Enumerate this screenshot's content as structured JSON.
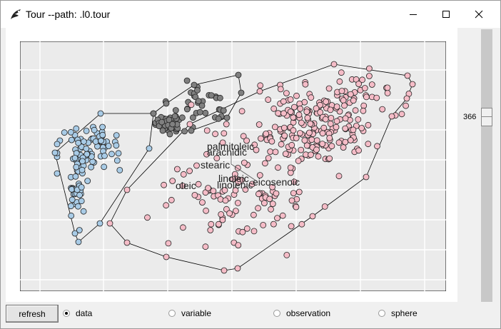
{
  "window": {
    "title": "Tour --path: .l0.tour",
    "icon": "feather-icon",
    "controls": [
      "minimize-icon",
      "maximize-icon",
      "close-icon"
    ]
  },
  "slider": {
    "value": "366"
  },
  "toolbar": {
    "refresh_label": "refresh",
    "radios": [
      {
        "label": "data",
        "checked": true
      },
      {
        "label": "variable",
        "checked": false
      },
      {
        "label": "observation",
        "checked": false
      },
      {
        "label": "sphere",
        "checked": false
      }
    ]
  },
  "chart_data": {
    "type": "scatter",
    "grid": true,
    "variable_labels": [
      "palmitoleic",
      "arachidic",
      "stearic",
      "linoleic",
      "oleic",
      "linolenic",
      "eicosenoic"
    ],
    "series": [
      {
        "name": "",
        "color": "#a8cbe6"
      },
      {
        "name": "",
        "color": "#808080"
      },
      {
        "name": "",
        "color": "#f5bcc7"
      }
    ]
  }
}
